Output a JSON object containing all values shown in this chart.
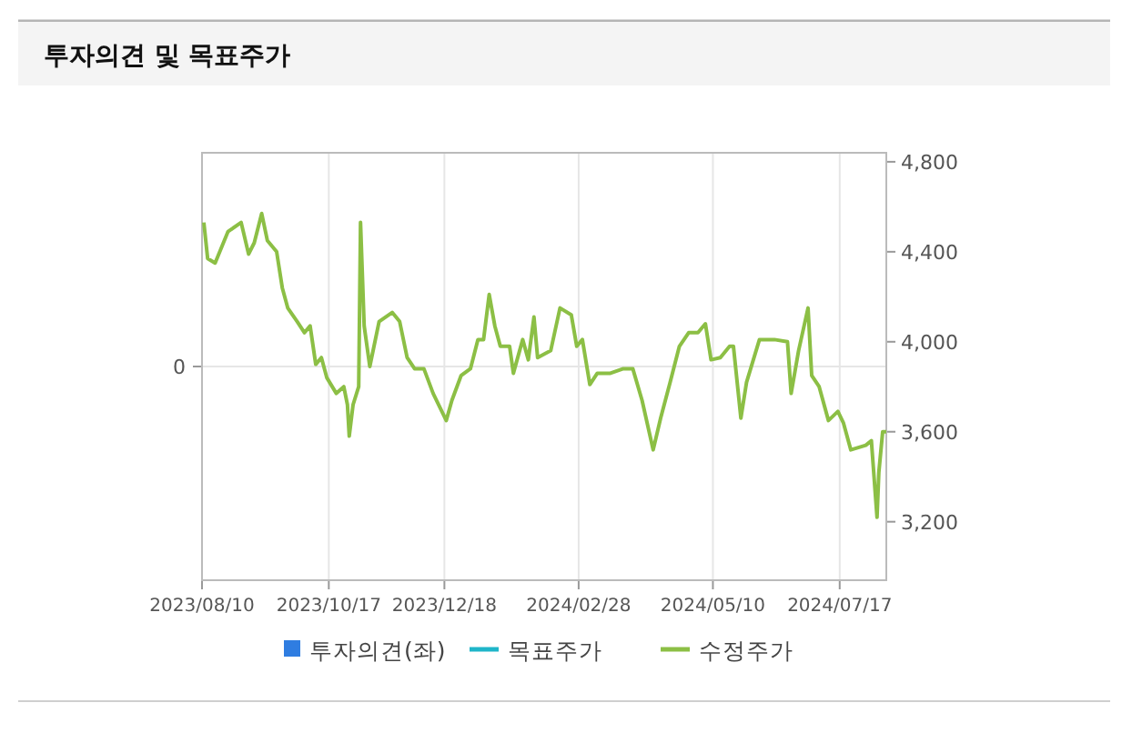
{
  "chart_data": {
    "type": "line",
    "title": "투자의견 및 목표주가",
    "x": [
      "2023-08-11",
      "2023-08-13",
      "2023-08-17",
      "2023-08-24",
      "2023-08-31",
      "2023-09-04",
      "2023-09-07",
      "2023-09-11",
      "2023-09-14",
      "2023-09-19",
      "2023-09-22",
      "2023-09-25",
      "2023-09-30",
      "2023-10-04",
      "2023-10-07",
      "2023-10-10",
      "2023-10-13",
      "2023-10-16",
      "2023-10-21",
      "2023-10-25",
      "2023-10-27",
      "2023-10-28",
      "2023-10-30",
      "2023-11-02",
      "2023-11-03",
      "2023-11-05",
      "2023-11-08",
      "2023-11-13",
      "2023-11-20",
      "2023-11-24",
      "2023-11-28",
      "2023-12-02",
      "2023-12-07",
      "2023-12-12",
      "2023-12-19",
      "2023-12-22",
      "2023-12-27",
      "2024-01-01",
      "2024-01-05",
      "2024-01-08",
      "2024-01-11",
      "2024-01-14",
      "2024-01-17",
      "2024-01-22",
      "2024-01-24",
      "2024-01-29",
      "2024-02-01",
      "2024-02-04",
      "2024-02-06",
      "2024-02-13",
      "2024-02-18",
      "2024-02-24",
      "2024-02-27",
      "2024-03-01",
      "2024-03-05",
      "2024-03-09",
      "2024-03-16",
      "2024-03-23",
      "2024-03-28",
      "2024-04-02",
      "2024-04-08",
      "2024-04-12",
      "2024-04-17",
      "2024-04-22",
      "2024-04-27",
      "2024-05-02",
      "2024-05-06",
      "2024-05-09",
      "2024-05-14",
      "2024-05-19",
      "2024-05-21",
      "2024-05-25",
      "2024-05-28",
      "2024-06-04",
      "2024-06-12",
      "2024-06-19",
      "2024-06-21",
      "2024-06-25",
      "2024-06-30",
      "2024-07-02",
      "2024-07-06",
      "2024-07-11",
      "2024-07-16",
      "2024-07-19",
      "2024-07-23",
      "2024-07-31",
      "2024-08-03",
      "2024-08-06",
      "2024-08-07",
      "2024-08-09",
      "2024-08-11"
    ],
    "series": [
      {
        "name": "투자의견(좌)",
        "type": "bar",
        "color": "#2f7de1",
        "values": [
          null,
          null,
          null,
          null,
          null,
          null,
          null,
          null,
          null,
          null,
          null,
          null,
          null,
          null,
          null,
          null,
          null,
          null,
          null,
          null,
          null,
          null,
          null,
          null,
          null,
          null,
          null,
          null,
          null,
          null,
          null,
          null,
          null,
          null,
          null,
          null,
          null,
          null,
          null,
          null,
          null,
          null,
          null,
          null,
          null,
          null,
          null,
          null,
          null,
          null,
          null,
          null,
          null,
          null,
          null,
          null,
          null,
          null,
          null,
          null,
          null,
          null,
          null,
          null,
          null,
          null,
          null,
          null,
          null,
          null,
          null,
          null,
          null,
          null,
          null,
          null,
          null,
          null,
          null,
          null,
          null,
          null,
          null,
          null,
          null,
          null,
          null,
          null,
          null,
          null,
          null
        ]
      },
      {
        "name": "목표주가",
        "type": "line",
        "axis": "y2",
        "color": "#1fb5c9",
        "values": [
          null,
          null,
          null,
          null,
          null,
          null,
          null,
          null,
          null,
          null,
          null,
          null,
          null,
          null,
          null,
          null,
          null,
          null,
          null,
          null,
          null,
          null,
          null,
          null,
          null,
          null,
          null,
          null,
          null,
          null,
          null,
          null,
          null,
          null,
          null,
          null,
          null,
          null,
          null,
          null,
          null,
          null,
          null,
          null,
          null,
          null,
          null,
          null,
          null,
          null,
          null,
          null,
          null,
          null,
          null,
          null,
          null,
          null,
          null,
          null,
          null,
          null,
          null,
          null,
          null,
          null,
          null,
          null,
          null,
          null,
          null,
          null,
          null,
          null,
          null,
          null,
          null,
          null,
          null,
          null,
          null,
          null,
          null,
          null,
          null,
          null,
          null,
          null,
          null,
          null,
          null
        ]
      },
      {
        "name": "수정주가",
        "axis": "y2",
        "color": "#8cbf45",
        "values": [
          4530,
          4370,
          4350,
          4490,
          4530,
          4390,
          4440,
          4570,
          4450,
          4400,
          4240,
          4150,
          4090,
          4040,
          4070,
          3900,
          3930,
          3840,
          3770,
          3800,
          3720,
          3580,
          3720,
          3800,
          4530,
          4070,
          3890,
          4090,
          4130,
          4090,
          3930,
          3880,
          3880,
          3770,
          3650,
          3740,
          3850,
          3880,
          4010,
          4010,
          4210,
          4070,
          3980,
          3980,
          3860,
          4010,
          3920,
          4110,
          3930,
          3960,
          4150,
          4120,
          3980,
          4010,
          3810,
          3860,
          3860,
          3880,
          3880,
          3740,
          3520,
          3660,
          3820,
          3980,
          4040,
          4040,
          4080,
          3920,
          3930,
          3980,
          3980,
          3660,
          3820,
          4010,
          4010,
          4000,
          3770,
          3960,
          4150,
          3850,
          3800,
          3650,
          3690,
          3640,
          3520,
          3540,
          3560,
          3220,
          3420,
          3600,
          3600
        ]
      }
    ],
    "xlim": [
      "2023-08-10",
      "2024-08-11"
    ],
    "xticks": [
      {
        "value": "2023-08-10",
        "label": "2023/08/10"
      },
      {
        "value": "2023-10-17",
        "label": "2023/10/17"
      },
      {
        "value": "2023-12-18",
        "label": "2023/12/18"
      },
      {
        "value": "2024-02-28",
        "label": "2024/02/28"
      },
      {
        "value": "2024-05-10",
        "label": "2024/05/10"
      },
      {
        "value": "2024-07-17",
        "label": "2024/07/17"
      }
    ],
    "annotations": [
      "0"
    ],
    "y2lim": [
      2940,
      4840
    ],
    "y2ticks": [
      {
        "value": 3200,
        "label": "3,200"
      },
      {
        "value": 3600,
        "label": "3,600"
      },
      {
        "value": 4000,
        "label": "4,000"
      },
      {
        "value": 4400,
        "label": "4,400"
      },
      {
        "value": 4800,
        "label": "4,800"
      }
    ],
    "grid": true,
    "legend": "bottom",
    "marker": "none",
    "line_style": "solid"
  }
}
